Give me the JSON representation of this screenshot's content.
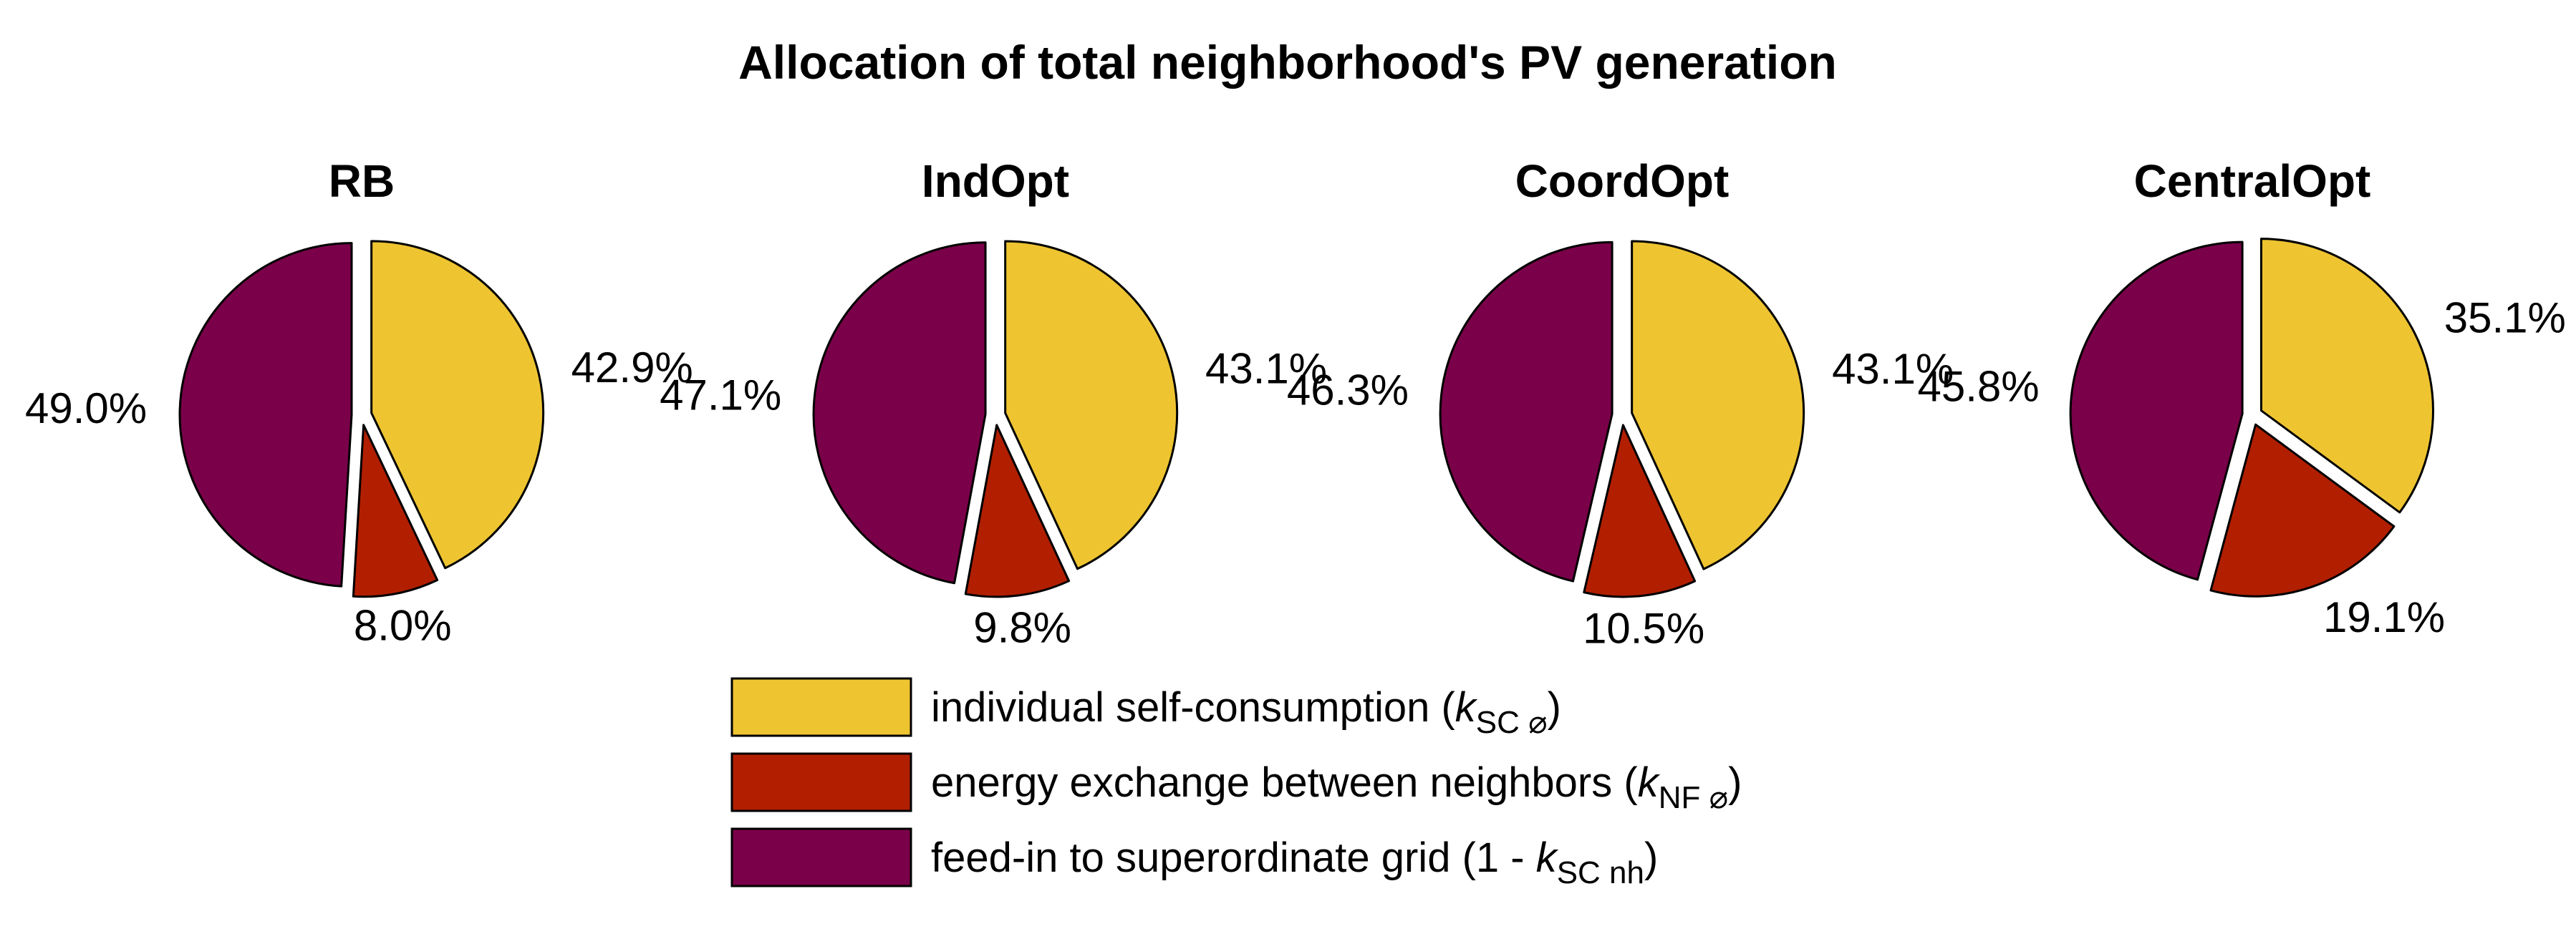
{
  "chart_data": {
    "type": "pie",
    "title": "Allocation of total neighborhood's PV generation",
    "categories": [
      "individual self-consumption",
      "energy exchange between neighbors",
      "feed-in to superordinate grid"
    ],
    "colors": [
      "#EEC431",
      "#B11F00",
      "#7A0049"
    ],
    "pies": [
      {
        "name": "RB",
        "values": [
          42.9,
          8.0,
          49.0
        ],
        "labels": [
          "42.9%",
          "8.0%",
          "49.0%"
        ]
      },
      {
        "name": "IndOpt",
        "values": [
          43.1,
          9.8,
          47.1
        ],
        "labels": [
          "43.1%",
          "9.8%",
          "47.1%"
        ]
      },
      {
        "name": "CoordOpt",
        "values": [
          43.1,
          10.5,
          46.3
        ],
        "labels": [
          "43.1%",
          "10.5%",
          "46.3%"
        ]
      },
      {
        "name": "CentralOpt",
        "values": [
          35.1,
          19.1,
          45.8
        ],
        "labels": [
          "35.1%",
          "19.1%",
          "45.8%"
        ]
      }
    ],
    "legend": {
      "position": "bottom-center",
      "entries": [
        {
          "text": "individual self-consumption (",
          "italic": "k",
          "sub": "SC ⌀",
          "close": ")"
        },
        {
          "text": "energy exchange between neighbors (",
          "italic": "k",
          "sub": "NF ⌀",
          "close": ")"
        },
        {
          "text": "feed-in to superordinate grid (1 - ",
          "italic": "k",
          "sub": "SC nh",
          "close": ")"
        }
      ]
    }
  }
}
